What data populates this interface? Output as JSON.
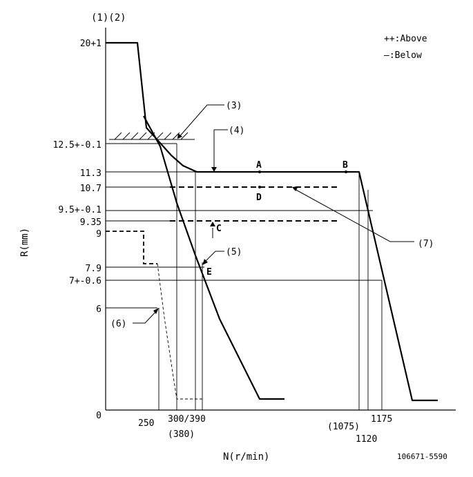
{
  "header": {
    "label_1_2": "(1)(2)"
  },
  "legend": {
    "above": "++:Above",
    "below": "—:Below"
  },
  "axes": {
    "y_title": "R(mm)",
    "x_title": "N(r/min)",
    "y_ticks": {
      "t20": "20+1",
      "t12_5": "12.5+-0.1",
      "t11_3": "11.3",
      "t10_7": "10.7",
      "t9_5": "9.5+-0.1",
      "t9_35": "9.35",
      "t9": "9",
      "t7_9": "7.9",
      "t7": "7+-0.6",
      "t6": "6",
      "t0": "0"
    },
    "x_ticks": {
      "t250": "250",
      "t300_390": "300/390",
      "t380": "(380)",
      "t1075": "(1075)",
      "t1120": "1120",
      "t1175": "1175"
    }
  },
  "callouts": {
    "c3": "(3)",
    "c4": "(4)",
    "c5": "(5)",
    "c6": "(6)",
    "c7": "(7)"
  },
  "points": {
    "A": "A",
    "B": "B",
    "C": "C",
    "D": "D",
    "E": "E"
  },
  "footer": {
    "drawing_number": "106671-5590"
  }
}
